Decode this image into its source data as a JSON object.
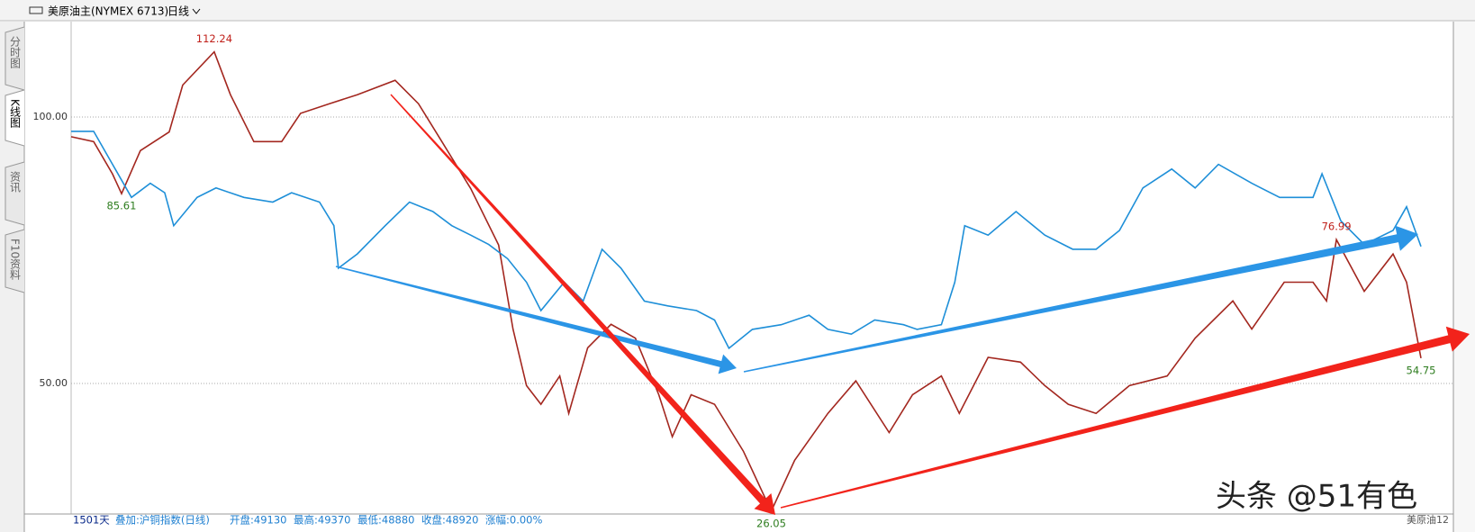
{
  "header": {
    "title": "美原油主(NYMEX 6713)",
    "period": "日线"
  },
  "tabs": [
    "分时图",
    "K线图",
    "资讯",
    "F10资料"
  ],
  "chart_data": {
    "type": "line",
    "xlim": [
      0,
      1500
    ],
    "ylim": [
      25.68,
      117.74
    ],
    "y2lim": [
      0,
      90000
    ],
    "yticks": [
      {
        "value": 50,
        "label": "50.00"
      },
      {
        "value": 100,
        "label": "100.00"
      }
    ],
    "grid": true,
    "series": [
      {
        "color": "#a3271f",
        "x": [
          0,
          25,
          46,
          56,
          77,
          109,
          124,
          159,
          177,
          203,
          234,
          255,
          287,
          318,
          360,
          386,
          412,
          444,
          475,
          491,
          506,
          522,
          543,
          553,
          574,
          600,
          627,
          653,
          668,
          689,
          715,
          747,
          778,
          804,
          841,
          872,
          909,
          935,
          967,
          987,
          1019,
          1055,
          1082,
          1108,
          1139,
          1176,
          1218,
          1249,
          1291,
          1312,
          1348,
          1380,
          1395,
          1406,
          1437,
          1469,
          1484,
          1500
        ],
        "values": [
          96.3,
          95.4,
          89.3,
          85.61,
          93.7,
          97.2,
          106,
          112.24,
          104.2,
          95.4,
          95.4,
          100.7,
          102.5,
          104.2,
          106.9,
          102.5,
          95.4,
          86.6,
          76,
          60.2,
          49.6,
          46.1,
          51.4,
          44.4,
          56.7,
          61.1,
          58.5,
          47.9,
          40,
          47.9,
          46.1,
          37.3,
          26.05,
          35.6,
          44.4,
          50.5,
          40.8,
          47.9,
          51.4,
          44.4,
          54.9,
          54,
          49.6,
          46.1,
          44.4,
          49.6,
          51.4,
          58.5,
          65.5,
          60.2,
          69,
          69,
          65.5,
          76.99,
          67.3,
          74.3,
          69,
          54.75
        ]
      },
      {
        "color": "#1e8fd8",
        "axis": "y2",
        "x": [
          0,
          25,
          46,
          67,
          88,
          104,
          114,
          140,
          161,
          192,
          224,
          245,
          276,
          292,
          297,
          318,
          349,
          376,
          402,
          423,
          444,
          464,
          485,
          506,
          522,
          548,
          569,
          590,
          611,
          637,
          663,
          695,
          715,
          731,
          757,
          789,
          820,
          841,
          867,
          893,
          925,
          940,
          967,
          982,
          993,
          1019,
          1050,
          1082,
          1113,
          1139,
          1165,
          1191,
          1223,
          1249,
          1275,
          1312,
          1343,
          1380,
          1390,
          1411,
          1437,
          1469,
          1484,
          1500
        ],
        "values": [
          70030,
          70030,
          63970,
          57920,
          60510,
          58780,
          52730,
          57920,
          59650,
          57920,
          57050,
          58780,
          57050,
          52730,
          44940,
          47540,
          52730,
          57050,
          55320,
          52730,
          51000,
          49270,
          46670,
          42350,
          37160,
          42350,
          38890,
          48400,
          44940,
          38890,
          38020,
          37160,
          35430,
          30240,
          33700,
          34560,
          36290,
          33700,
          32830,
          35430,
          34560,
          33700,
          34560,
          42350,
          52730,
          51000,
          55320,
          51000,
          48400,
          48400,
          51860,
          59650,
          63110,
          59650,
          63970,
          60510,
          57920,
          57920,
          62240,
          53590,
          49270,
          51860,
          56190,
          48920
        ]
      }
    ],
    "annotations": [
      {
        "x": 159,
        "value": 112.24,
        "color": "#c0201a",
        "position": "above"
      },
      {
        "x": 56,
        "value": 85.61,
        "color": "#2e7d1f",
        "position": "below"
      },
      {
        "x": 778,
        "value": 26.05,
        "color": "#2e7d1f",
        "position": "below"
      },
      {
        "x": 1406,
        "value": 76.99,
        "color": "#c0201a",
        "position": "above"
      },
      {
        "x": 1500,
        "value": 54.75,
        "color": "#2e7d1f",
        "position": "below"
      }
    ]
  },
  "status_bar": {
    "days": "1501天",
    "overlay": "叠加:沪铜指数(日线)",
    "open": "开盘:49130",
    "high": "最高:49370",
    "low": "最低:48880",
    "close": "收盘:48920",
    "change": "涨幅:0.00%"
  },
  "footer_label": "美原油12",
  "watermark": "头条 @51有色"
}
